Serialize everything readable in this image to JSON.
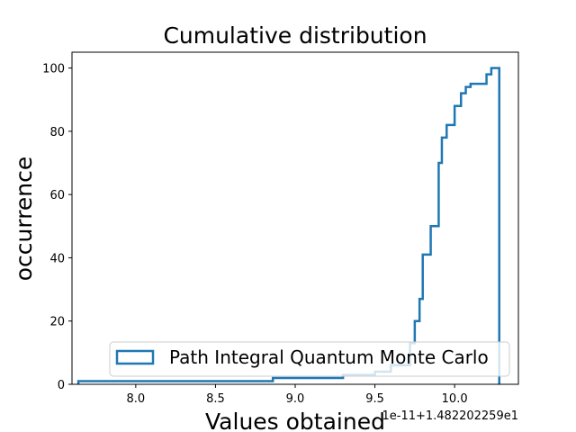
{
  "chart_data": {
    "type": "step",
    "title": "Cumulative distribution",
    "xlabel": "Values obtained",
    "ylabel": "occurrence",
    "x_offset_text": "1e-11+1.482202259e1",
    "xlim": [
      7.6,
      10.4
    ],
    "ylim": [
      0,
      105
    ],
    "xticks": [
      8.0,
      8.5,
      9.0,
      9.5,
      10.0
    ],
    "xtick_labels": [
      "8.0",
      "8.5",
      "9.0",
      "9.5",
      "10.0"
    ],
    "yticks": [
      0,
      20,
      40,
      60,
      80,
      100
    ],
    "ytick_labels": [
      "0",
      "20",
      "40",
      "60",
      "80",
      "100"
    ],
    "grid": false,
    "legend_position": "lower-right",
    "series": [
      {
        "name": "Path Integral Quantum Monte Carlo",
        "color": "#1f77b4",
        "x": [
          7.64,
          8.86,
          9.3,
          9.5,
          9.6,
          9.72,
          9.75,
          9.78,
          9.8,
          9.85,
          9.9,
          9.92,
          9.95,
          10.0,
          10.04,
          10.07,
          10.1,
          10.15,
          10.2,
          10.23,
          10.26,
          10.28
        ],
        "y": [
          1,
          2,
          3,
          4,
          6,
          13,
          20,
          27,
          41,
          50,
          70,
          78,
          82,
          88,
          92,
          94,
          95,
          95,
          98,
          100,
          100,
          0
        ]
      }
    ]
  }
}
